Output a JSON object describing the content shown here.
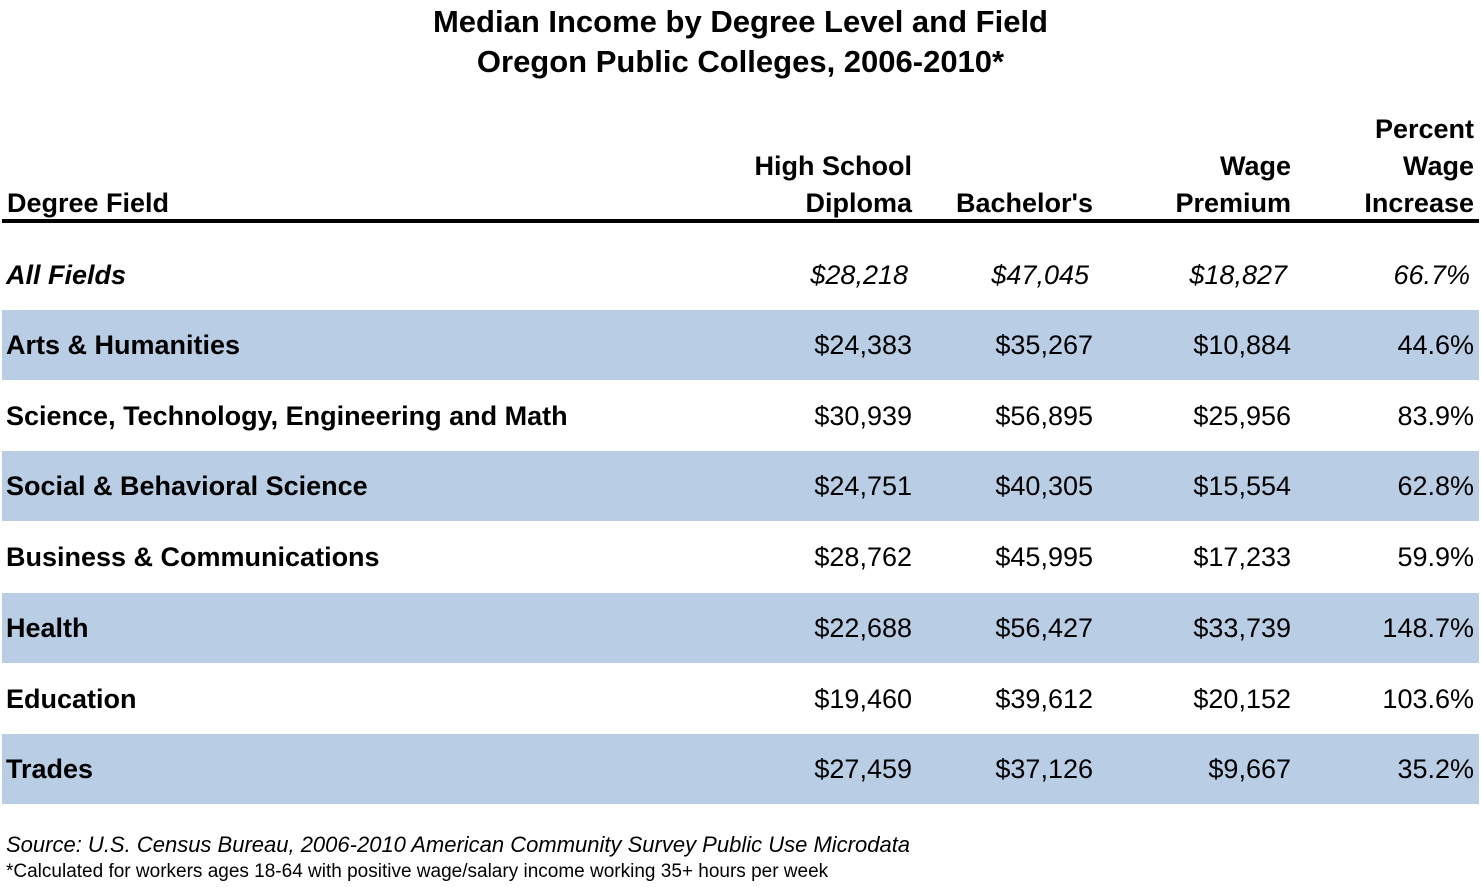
{
  "chart_data": {
    "type": "table",
    "title": "Median Income by Degree Level and Field",
    "subtitle": "Oregon Public Colleges, 2006-2010*",
    "columns": [
      {
        "key": "field",
        "label_lines": [
          "Degree Field"
        ]
      },
      {
        "key": "high_school",
        "label_lines": [
          "High School",
          "Diploma"
        ]
      },
      {
        "key": "bachelors",
        "label_lines": [
          "Bachelor's"
        ]
      },
      {
        "key": "wage_premium",
        "label_lines": [
          "Wage",
          "Premium"
        ]
      },
      {
        "key": "percent_increase",
        "label_lines": [
          "Percent",
          "Wage",
          "Increase"
        ]
      }
    ],
    "rows": [
      {
        "field": "All Fields",
        "high_school": "$28,218",
        "bachelors": "$47,045",
        "wage_premium": "$18,827",
        "percent_increase": "66.7%",
        "italic": true,
        "shaded": false
      },
      {
        "field": "Arts & Humanities",
        "high_school": "$24,383",
        "bachelors": "$35,267",
        "wage_premium": "$10,884",
        "percent_increase": "44.6%",
        "italic": false,
        "shaded": true
      },
      {
        "field": "Science, Technology, Engineering and Math",
        "high_school": "$30,939",
        "bachelors": "$56,895",
        "wage_premium": "$25,956",
        "percent_increase": "83.9%",
        "italic": false,
        "shaded": false
      },
      {
        "field": "Social & Behavioral Science",
        "high_school": "$24,751",
        "bachelors": "$40,305",
        "wage_premium": "$15,554",
        "percent_increase": "62.8%",
        "italic": false,
        "shaded": true
      },
      {
        "field": "Business & Communications",
        "high_school": "$28,762",
        "bachelors": "$45,995",
        "wage_premium": "$17,233",
        "percent_increase": "59.9%",
        "italic": false,
        "shaded": false
      },
      {
        "field": "Health",
        "high_school": "$22,688",
        "bachelors": "$56,427",
        "wage_premium": "$33,739",
        "percent_increase": "148.7%",
        "italic": false,
        "shaded": true
      },
      {
        "field": "Education",
        "high_school": "$19,460",
        "bachelors": "$39,612",
        "wage_premium": "$20,152",
        "percent_increase": "103.6%",
        "italic": false,
        "shaded": false
      },
      {
        "field": "Trades",
        "high_school": "$27,459",
        "bachelors": "$37,126",
        "wage_premium": "$9,667",
        "percent_increase": "35.2%",
        "italic": false,
        "shaded": true
      }
    ],
    "shade_color": "#b9cde5",
    "source": "Source: U.S. Census Bureau, 2006-2010 American Community Survey Public Use Microdata",
    "footnote": "*Calculated for workers ages 18-64 with positive wage/salary income working 35+ hours per week"
  }
}
